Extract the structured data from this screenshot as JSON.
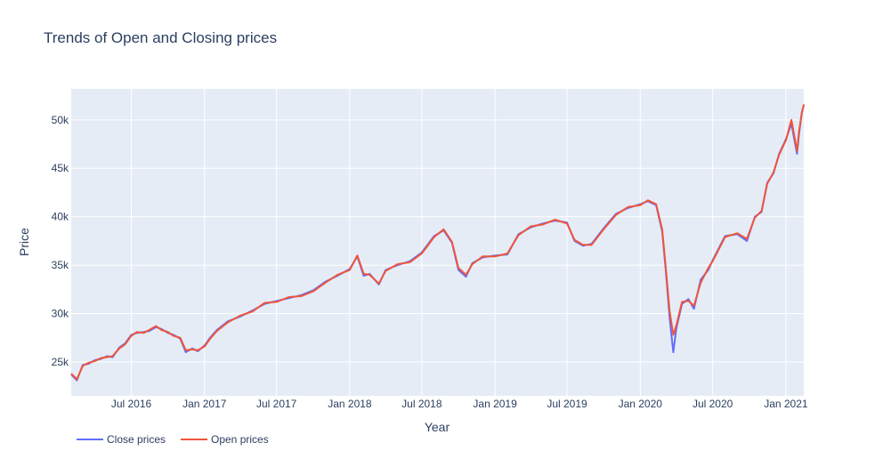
{
  "chart_data": {
    "type": "line",
    "title": "Trends of Open and Closing prices",
    "xlabel": "Year",
    "ylabel": "Price",
    "xlim": [
      "2016-02-01",
      "2021-02-15"
    ],
    "ylim": [
      21500,
      53200
    ],
    "x_ticks": [
      {
        "date": "2016-07-01",
        "label": "Jul 2016"
      },
      {
        "date": "2017-01-01",
        "label": "Jan 2017"
      },
      {
        "date": "2017-07-01",
        "label": "Jul 2017"
      },
      {
        "date": "2018-01-01",
        "label": "Jan 2018"
      },
      {
        "date": "2018-07-01",
        "label": "Jul 2018"
      },
      {
        "date": "2019-01-01",
        "label": "Jan 2019"
      },
      {
        "date": "2019-07-01",
        "label": "Jul 2019"
      },
      {
        "date": "2020-01-01",
        "label": "Jan 2020"
      },
      {
        "date": "2020-07-01",
        "label": "Jul 2020"
      },
      {
        "date": "2021-01-01",
        "label": "Jan 2021"
      }
    ],
    "y_ticks": [
      {
        "value": 25000,
        "label": "25k"
      },
      {
        "value": 30000,
        "label": "30k"
      },
      {
        "value": 35000,
        "label": "35k"
      },
      {
        "value": 40000,
        "label": "40k"
      },
      {
        "value": 45000,
        "label": "45k"
      },
      {
        "value": 50000,
        "label": "50k"
      }
    ],
    "grid": true,
    "legend_position": "bottom-left",
    "colors": {
      "close": "#636efa",
      "open": "#ef553b",
      "plot_bg": "#e5ecf6",
      "grid": "#ffffff"
    },
    "series": [
      {
        "name": "Close prices",
        "x": [
          "2016-02-01",
          "2016-02-15",
          "2016-03-01",
          "2016-03-15",
          "2016-04-01",
          "2016-04-15",
          "2016-05-01",
          "2016-05-15",
          "2016-06-01",
          "2016-06-15",
          "2016-07-01",
          "2016-07-15",
          "2016-08-01",
          "2016-08-15",
          "2016-09-01",
          "2016-09-15",
          "2016-10-01",
          "2016-10-15",
          "2016-11-01",
          "2016-11-15",
          "2016-12-01",
          "2016-12-15",
          "2017-01-01",
          "2017-01-15",
          "2017-02-01",
          "2017-03-01",
          "2017-04-01",
          "2017-05-01",
          "2017-06-01",
          "2017-07-01",
          "2017-08-01",
          "2017-09-01",
          "2017-10-01",
          "2017-11-01",
          "2017-12-01",
          "2018-01-01",
          "2018-01-20",
          "2018-02-05",
          "2018-02-20",
          "2018-03-15",
          "2018-04-01",
          "2018-05-01",
          "2018-06-01",
          "2018-07-01",
          "2018-08-01",
          "2018-08-25",
          "2018-09-15",
          "2018-10-01",
          "2018-10-20",
          "2018-11-05",
          "2018-12-01",
          "2019-01-01",
          "2019-02-01",
          "2019-03-01",
          "2019-04-01",
          "2019-05-01",
          "2019-06-01",
          "2019-07-01",
          "2019-07-20",
          "2019-08-10",
          "2019-09-01",
          "2019-10-01",
          "2019-11-01",
          "2019-12-01",
          "2020-01-01",
          "2020-01-20",
          "2020-02-10",
          "2020-02-25",
          "2020-03-05",
          "2020-03-15",
          "2020-03-24",
          "2020-04-01",
          "2020-04-15",
          "2020-05-01",
          "2020-05-15",
          "2020-06-01",
          "2020-06-20",
          "2020-07-01",
          "2020-08-01",
          "2020-09-01",
          "2020-09-25",
          "2020-10-15",
          "2020-11-01",
          "2020-11-15",
          "2020-12-01",
          "2020-12-15",
          "2021-01-01",
          "2021-01-15",
          "2021-01-29",
          "2021-02-03",
          "2021-02-10",
          "2021-02-15"
        ],
        "y": [
          23700,
          23100,
          24700,
          24800,
          25200,
          25300,
          25600,
          25500,
          26500,
          26900,
          27800,
          28000,
          28100,
          28200,
          28600,
          28400,
          28000,
          27800,
          27400,
          26000,
          26400,
          26100,
          26700,
          27500,
          28300,
          29200,
          29700,
          30300,
          31000,
          31300,
          31600,
          31900,
          32400,
          33300,
          33900,
          34600,
          35900,
          33900,
          34100,
          33000,
          34500,
          35000,
          35400,
          36300,
          38000,
          38600,
          37300,
          34500,
          33800,
          35200,
          35800,
          36000,
          36100,
          38200,
          38900,
          39300,
          39600,
          39400,
          37500,
          37000,
          37200,
          38800,
          40300,
          40900,
          41300,
          41600,
          41200,
          38500,
          34500,
          29500,
          26000,
          28500,
          31000,
          31500,
          30500,
          33500,
          34500,
          35500,
          38000,
          38200,
          37500,
          40000,
          40500,
          43500,
          44500,
          46500,
          48000,
          49600,
          46500,
          48500,
          50800,
          51500
        ]
      },
      {
        "name": "Open prices",
        "x": [
          "2016-02-01",
          "2016-02-15",
          "2016-03-01",
          "2016-03-15",
          "2016-04-01",
          "2016-04-15",
          "2016-05-01",
          "2016-05-15",
          "2016-06-01",
          "2016-06-15",
          "2016-07-01",
          "2016-07-15",
          "2016-08-01",
          "2016-08-15",
          "2016-09-01",
          "2016-09-15",
          "2016-10-01",
          "2016-10-15",
          "2016-11-01",
          "2016-11-15",
          "2016-12-01",
          "2016-12-15",
          "2017-01-01",
          "2017-01-15",
          "2017-02-01",
          "2017-03-01",
          "2017-04-01",
          "2017-05-01",
          "2017-06-01",
          "2017-07-01",
          "2017-08-01",
          "2017-09-01",
          "2017-10-01",
          "2017-11-01",
          "2017-12-01",
          "2018-01-01",
          "2018-01-20",
          "2018-02-05",
          "2018-02-20",
          "2018-03-15",
          "2018-04-01",
          "2018-05-01",
          "2018-06-01",
          "2018-07-01",
          "2018-08-01",
          "2018-08-25",
          "2018-09-15",
          "2018-10-01",
          "2018-10-20",
          "2018-11-05",
          "2018-12-01",
          "2019-01-01",
          "2019-02-01",
          "2019-03-01",
          "2019-04-01",
          "2019-05-01",
          "2019-06-01",
          "2019-07-01",
          "2019-07-20",
          "2019-08-10",
          "2019-09-01",
          "2019-10-01",
          "2019-11-01",
          "2019-12-01",
          "2020-01-01",
          "2020-01-20",
          "2020-02-10",
          "2020-02-25",
          "2020-03-05",
          "2020-03-15",
          "2020-03-24",
          "2020-04-01",
          "2020-04-15",
          "2020-05-01",
          "2020-05-15",
          "2020-06-01",
          "2020-06-20",
          "2020-07-01",
          "2020-08-01",
          "2020-09-01",
          "2020-09-25",
          "2020-10-15",
          "2020-11-01",
          "2020-11-15",
          "2020-12-01",
          "2020-12-15",
          "2021-01-01",
          "2021-01-15",
          "2021-01-29",
          "2021-02-03",
          "2021-02-10",
          "2021-02-15"
        ],
        "y": [
          23800,
          23200,
          24600,
          24900,
          25100,
          25400,
          25500,
          25600,
          26400,
          26800,
          27700,
          28100,
          28000,
          28300,
          28700,
          28300,
          28100,
          27700,
          27500,
          26200,
          26300,
          26200,
          26600,
          27400,
          28200,
          29100,
          29800,
          30200,
          31100,
          31200,
          31700,
          31800,
          32300,
          33200,
          34000,
          34500,
          36000,
          34100,
          34000,
          33100,
          34400,
          35100,
          35300,
          36200,
          37900,
          38700,
          37400,
          34700,
          34000,
          35100,
          35900,
          35900,
          36200,
          38100,
          39000,
          39200,
          39700,
          39300,
          37600,
          37100,
          37100,
          38700,
          40200,
          41000,
          41200,
          41700,
          41300,
          38700,
          34800,
          30200,
          27800,
          28800,
          31200,
          31300,
          30800,
          33200,
          34700,
          35400,
          37900,
          38300,
          37700,
          39900,
          40600,
          43400,
          44600,
          46400,
          47900,
          50000,
          46800,
          48800,
          50700,
          51600
        ]
      }
    ]
  },
  "legend": {
    "close_label": "Close prices",
    "open_label": "Open prices"
  }
}
